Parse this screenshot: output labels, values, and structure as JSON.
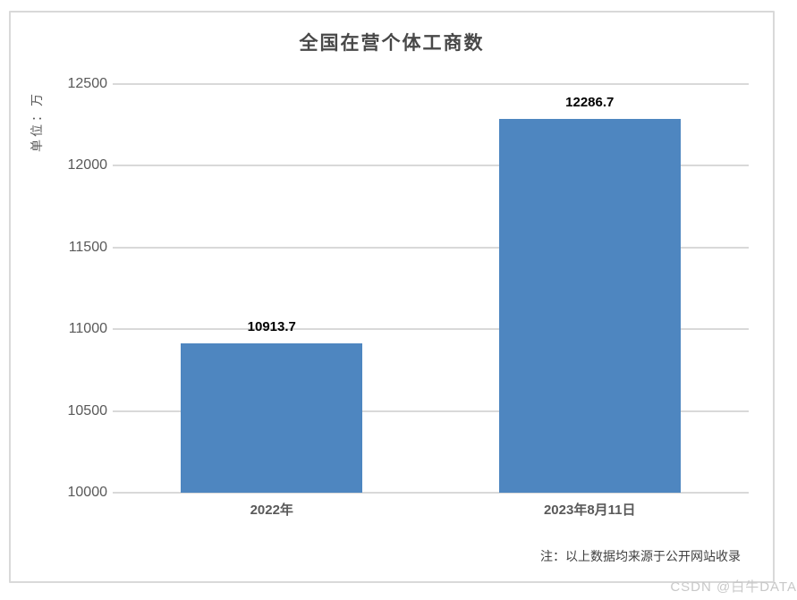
{
  "chart_data": {
    "type": "bar",
    "title": "全国在营个体工商数",
    "ylabel": "单位：万",
    "xlabel": "",
    "categories": [
      "2022年",
      "2023年8月11日"
    ],
    "values": [
      10913.7,
      12286.7
    ],
    "data_labels": [
      "10913.7",
      "12286.7"
    ],
    "ylim": [
      10000,
      12500
    ],
    "yticks": [
      10000,
      10500,
      11000,
      11500,
      12000,
      12500
    ],
    "grid": true,
    "legend_position": "none",
    "bar_color": "#4e86c0",
    "gridline_color": "#d9d9d9",
    "note": "注：以上数据均来源于公开网站收录"
  },
  "watermark": "CSDN @白牛DATA"
}
